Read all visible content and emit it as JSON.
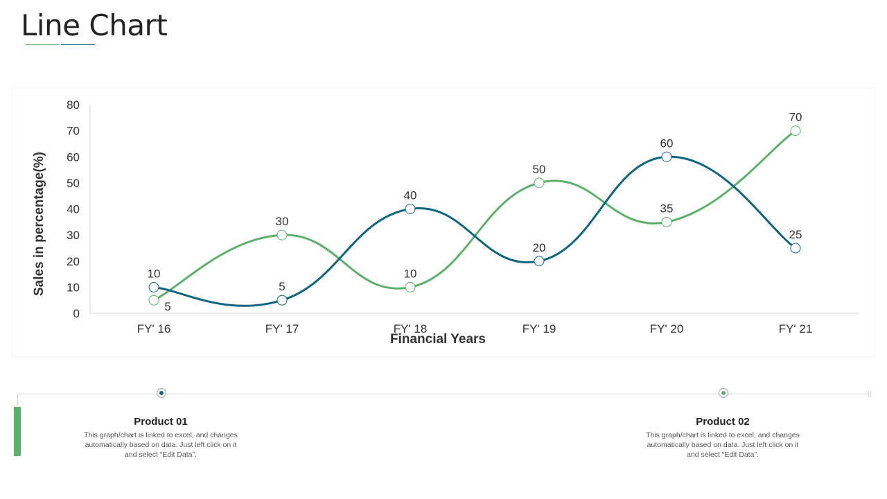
{
  "page": {
    "title": "Line Chart",
    "accent_green": "#5bb06a",
    "accent_blue": "#0d6680"
  },
  "chart_data": {
    "type": "line",
    "categories": [
      "FY' 16",
      "FY' 17",
      "FY' 18",
      "FY' 19",
      "FY' 20",
      "FY' 21"
    ],
    "series": [
      {
        "name": "Product 01",
        "color": "#0d6680",
        "values": [
          10,
          5,
          40,
          20,
          60,
          25
        ]
      },
      {
        "name": "Product 02",
        "color": "#5bb06a",
        "values": [
          5,
          30,
          10,
          50,
          35,
          70
        ]
      }
    ],
    "xlabel": "Financial Years",
    "ylabel": "Sales in percentage(%)",
    "ylim": [
      0,
      80
    ],
    "yticks": [
      0,
      10,
      20,
      30,
      40,
      50,
      60,
      70,
      80
    ],
    "grid": false,
    "data_labels": true
  },
  "products": [
    {
      "title": "Product 01",
      "color": "#0d6680",
      "desc": [
        "This graph/chart is linked to excel, and changes",
        "automatically based on data. Just left click on it",
        "and select “Edit Data”."
      ]
    },
    {
      "title": "Product 02",
      "color": "#5bb06a",
      "desc": [
        "This graph/chart is linked to excel, and changes",
        "automatically based on data. Just left click on it",
        "and select “Edit Data”."
      ]
    }
  ]
}
